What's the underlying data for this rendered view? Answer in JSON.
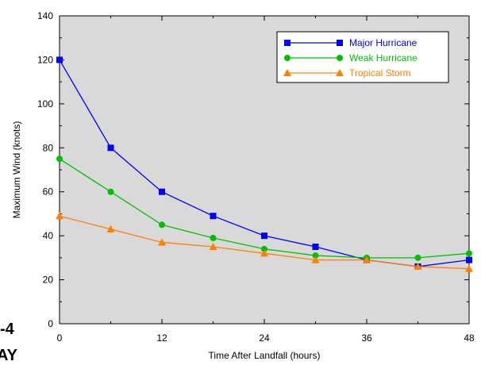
{
  "chart_data": {
    "type": "line",
    "title": "",
    "xlabel": "Time After Landfall (hours)",
    "ylabel": "Maximum Wind (knots)",
    "xlim": [
      0,
      48
    ],
    "ylim": [
      0,
      140
    ],
    "x_ticks": [
      0,
      12,
      24,
      36,
      48
    ],
    "y_ticks": [
      0,
      20,
      40,
      60,
      80,
      100,
      120,
      140
    ],
    "grid": false,
    "legend_position": "top-right",
    "plot_background": "#d9d9d9",
    "series": [
      {
        "name": "Major Hurricane",
        "color": "#0000ff",
        "marker": "square",
        "x": [
          0,
          6,
          12,
          18,
          24,
          30,
          36,
          42,
          48
        ],
        "y": [
          120,
          80,
          60,
          49,
          40,
          35,
          29,
          26,
          29
        ]
      },
      {
        "name": "Weak Hurricane",
        "color": "#00c000",
        "marker": "circle",
        "x": [
          0,
          6,
          12,
          18,
          24,
          30,
          36,
          42,
          48
        ],
        "y": [
          75,
          60,
          45,
          39,
          34,
          31,
          30,
          30,
          32
        ]
      },
      {
        "name": "Tropical Storm",
        "color": "#ff8000",
        "marker": "triangle",
        "x": [
          0,
          6,
          12,
          18,
          24,
          30,
          36,
          42,
          48
        ],
        "y": [
          49,
          43,
          37,
          35,
          32,
          29,
          29,
          26,
          25
        ]
      }
    ]
  },
  "edge_fragments": [
    "-4",
    "AY"
  ]
}
